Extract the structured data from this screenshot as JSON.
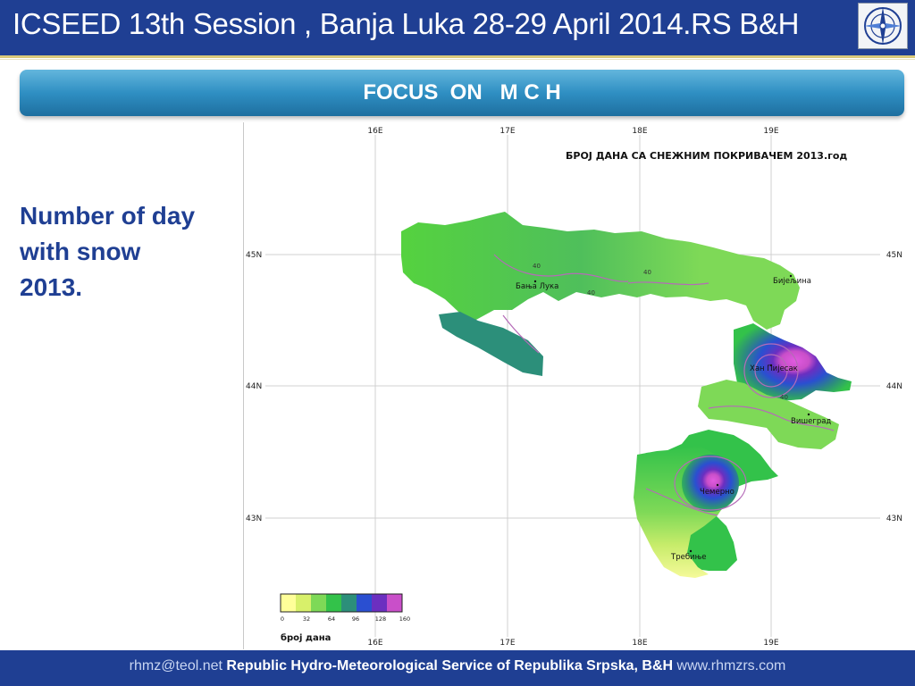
{
  "header": {
    "title": "ICSEED 13th Session , Banja Luka 28-29 April 2014.RS B&H",
    "logo_name": "rhmz-logo"
  },
  "banner": {
    "title": "FOCUS  ON   M C H"
  },
  "side_text": {
    "lines": [
      "Number of day",
      "with snow",
      "2013."
    ]
  },
  "map": {
    "title": "БРОЈ ДАНА СА СНЕЖНИМ ПОКРИВАЧЕМ 2013.год",
    "lon_ticks": [
      "16E",
      "17E",
      "18E",
      "19E"
    ],
    "lat_ticks": [
      "45N",
      "44N",
      "43N"
    ],
    "cities": [
      "Бања Лука",
      "Бијељина",
      "Хан Пијесак",
      "Вишеград",
      "Чемерно",
      "Требиње"
    ],
    "contour_labels": [
      "40",
      "40",
      "40",
      "40"
    ],
    "legend": {
      "ticks": [
        "0",
        "32",
        "64",
        "96",
        "128",
        "160"
      ],
      "label": "број дана",
      "colors": [
        "#ffff99",
        "#d8f06a",
        "#7ed957",
        "#33c24a",
        "#2c8f7a",
        "#2a4fd1",
        "#6b2fc0",
        "#c94fc9"
      ]
    }
  },
  "footer": {
    "email": "rhmz@teol.net",
    "org": "Republic Hydro-Meteorological Service of Republika Srpska, B&H",
    "site": "www.rhmzrs.com"
  }
}
